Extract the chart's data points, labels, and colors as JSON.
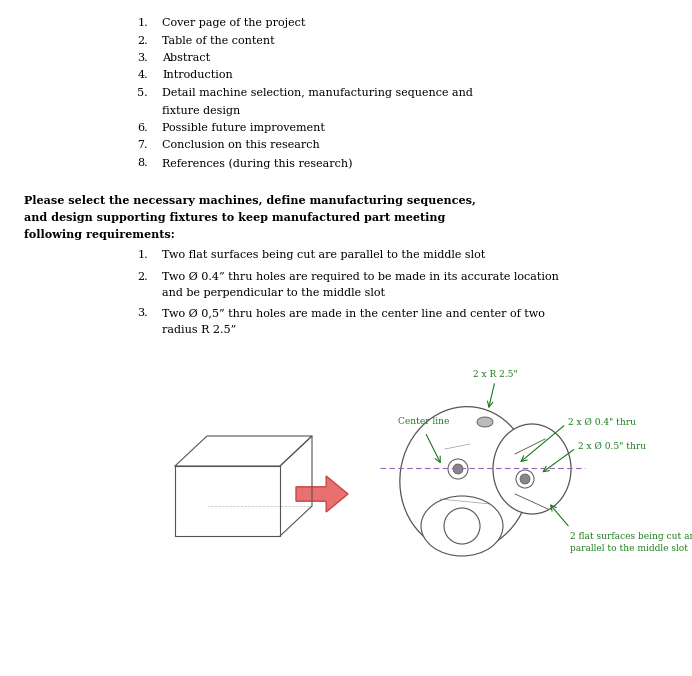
{
  "bg_color": "#ffffff",
  "font_family": "DejaVu Serif",
  "list_items": [
    "Cover page of the project",
    "Table of the content",
    "Abstract",
    "Introduction",
    "Detail machine selection, manufacturing sequence and",
    "fixture design",
    "Possible future improvement",
    "Conclusion on this research",
    "References (during this research)"
  ],
  "list_numbers": [
    "1.",
    "2.",
    "3.",
    "4.",
    "5.",
    "",
    "6.",
    "7.",
    "8."
  ],
  "bold_line1": "Please select the necessary machines, define manufacturing sequences,",
  "bold_line2": "and design supporting fixtures to keep manufactured part meeting",
  "bold_line3": "following requirements:",
  "req1": "Two flat surfaces being cut are parallel to the middle slot",
  "req2a": "Two Ø 0.4” thru holes are required to be made in its accurate location",
  "req2b": "and be perpendicular to the middle slot",
  "req3a": "Two Ø 0,5” thru holes are made in the center line and center of two",
  "req3b": "radius R 2.5”",
  "ann_2xR": "2 x R 2.5\"",
  "ann_centerline": "Center line",
  "ann_04thru": "2 x Ø 0.4\" thru",
  "ann_05thru": "2 x Ø 0.5\" thru",
  "ann_flat": "2 flat surfaces being cut an\nparallel to the middle slot",
  "annotation_color": "#1a7a1a",
  "arrow_color": "#cc4444",
  "line_color": "#555555",
  "cl_color": "#9966bb",
  "text_color": "#000000",
  "fs_main": 8.0,
  "fs_bold": 8.0,
  "fs_annot": 6.5
}
